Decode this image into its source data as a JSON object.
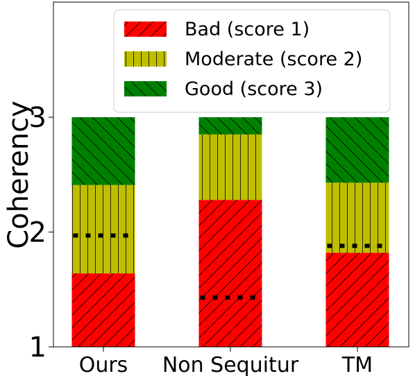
{
  "chart_data": {
    "type": "bar",
    "stacked": true,
    "ylabel": "Coherency",
    "xlabel": "",
    "title": "",
    "ylim": [
      1,
      4
    ],
    "yticks": [
      1,
      2,
      3
    ],
    "ytick_labels": [
      "1",
      "2",
      "3"
    ],
    "categories": [
      "Ours",
      "Non Sequitur",
      "TM"
    ],
    "series": [
      {
        "name": "Bad (score 1)",
        "color": "#ff0000",
        "hatch": "diagonal-forward",
        "bottoms": [
          1,
          1,
          1
        ],
        "tops": [
          1.64,
          2.28,
          1.82
        ]
      },
      {
        "name": "Moderate (score 2)",
        "color": "#bfbf00",
        "hatch": "vertical",
        "bottoms": [
          1.64,
          2.28,
          1.82
        ],
        "tops": [
          2.41,
          2.85,
          2.43
        ]
      },
      {
        "name": "Good (score 3)",
        "color": "#008000",
        "hatch": "diagonal-back",
        "bottoms": [
          2.41,
          2.85,
          2.43
        ],
        "tops": [
          3,
          3,
          3
        ]
      }
    ],
    "mean_scores": [
      1.97,
      1.43,
      1.88
    ],
    "legend_position": "top-right",
    "grid": false
  }
}
